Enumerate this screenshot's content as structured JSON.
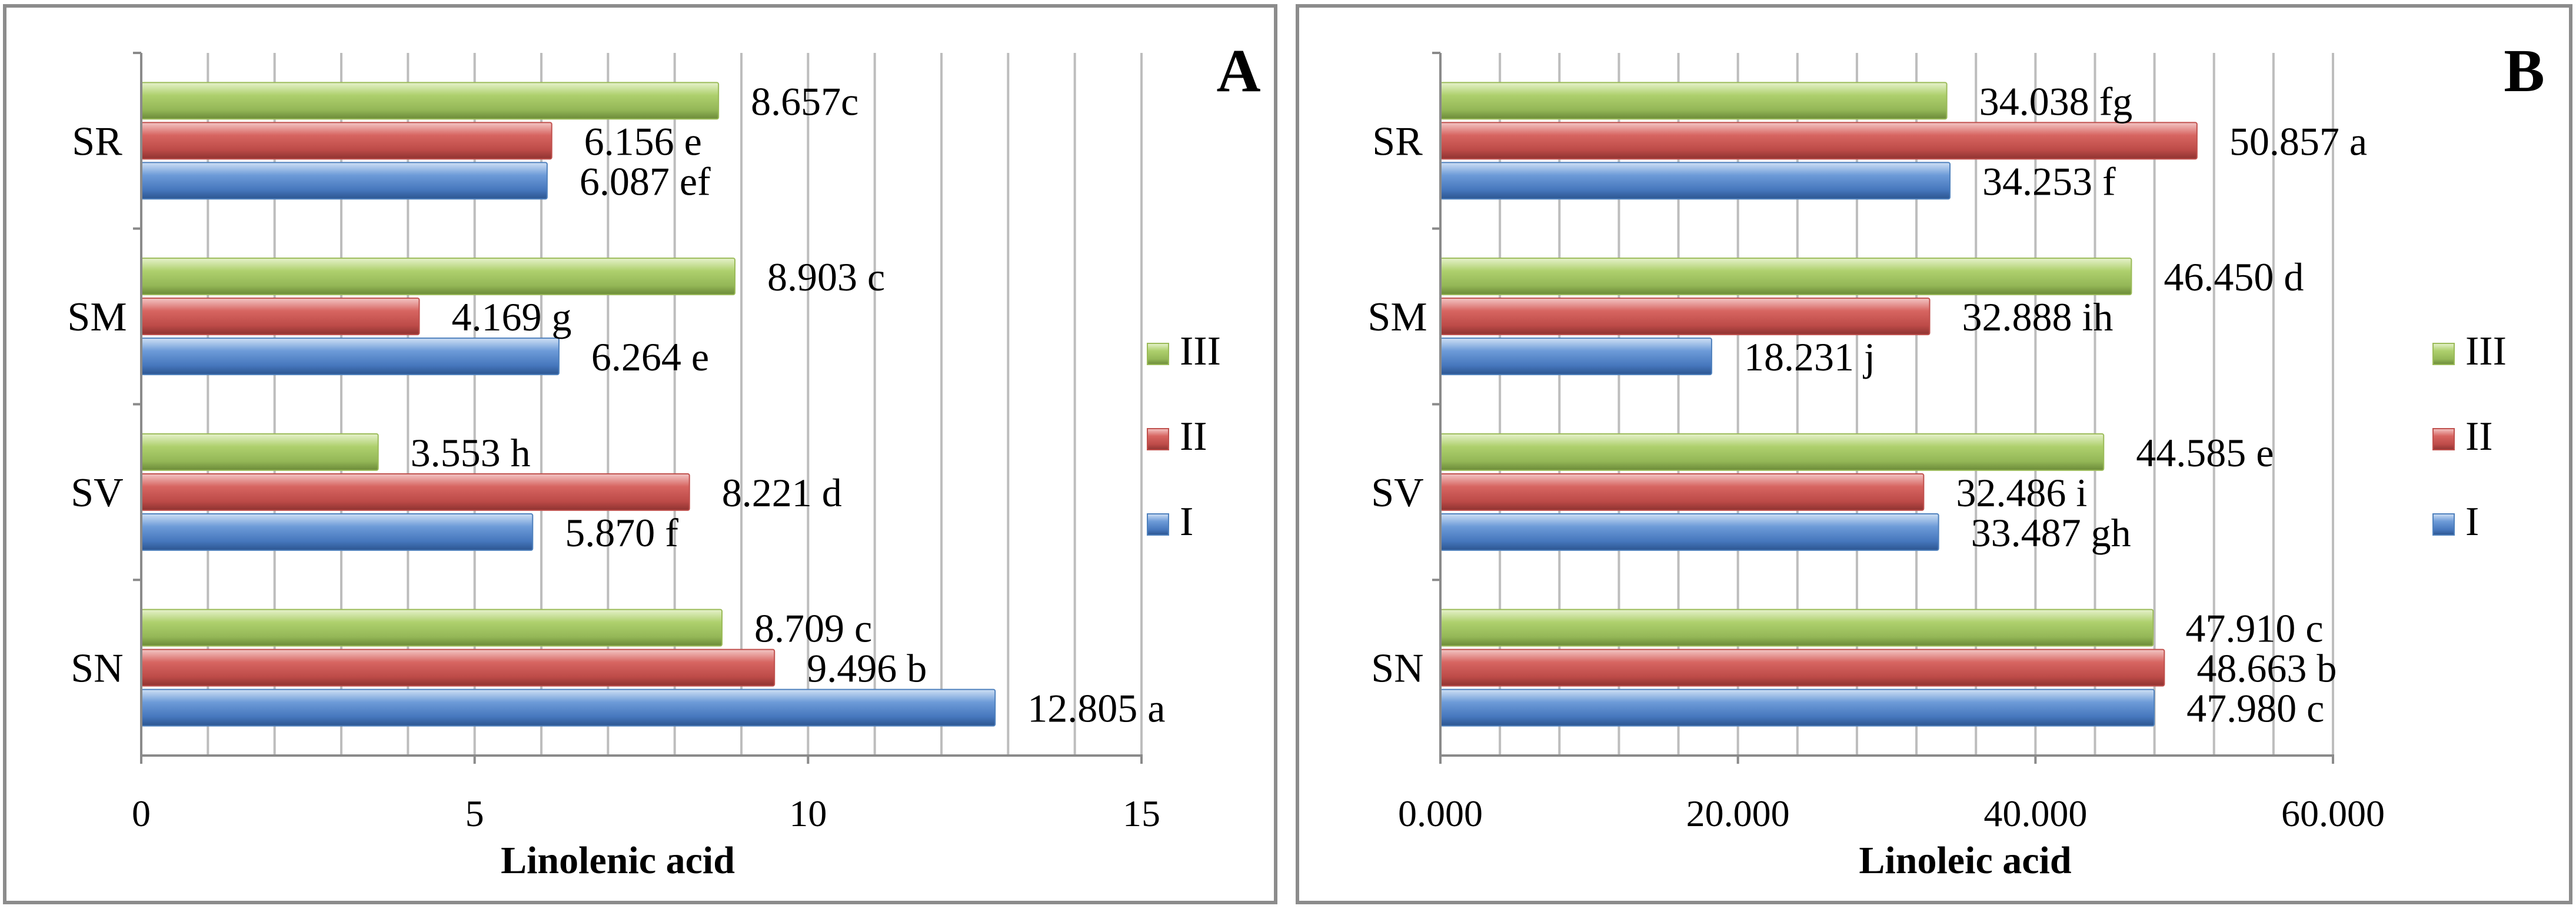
{
  "colors": {
    "I": "#4f81bd",
    "II": "#c0504d",
    "III": "#9bbb59"
  },
  "chart_data": [
    {
      "type": "bar",
      "orientation": "horizontal",
      "panel_label": "A",
      "xlabel": "Linolenic acid",
      "ylabel": "",
      "categories": [
        "SN",
        "SV",
        "SM",
        "SR"
      ],
      "xlim": [
        0,
        15
      ],
      "ticks": [
        0,
        5,
        10,
        15
      ],
      "tick_labels": [
        "0",
        "5",
        "10",
        "15"
      ],
      "minor_grid_step": 1,
      "legend_position": "right",
      "series": [
        {
          "name": "I",
          "values": [
            12.805,
            5.87,
            6.264,
            6.087
          ],
          "labels": [
            "12.805 a",
            "5.870 f",
            "6.264 e",
            "6.087 ef"
          ]
        },
        {
          "name": "II",
          "values": [
            9.496,
            8.221,
            4.169,
            6.156
          ],
          "labels": [
            "9.496 b",
            "8.221 d",
            "4.169 g",
            "6.156 e"
          ]
        },
        {
          "name": "III",
          "values": [
            8.709,
            3.553,
            8.903,
            8.657
          ],
          "labels": [
            "8.709 c",
            "3.553 h",
            "8.903 c",
            "8.657c"
          ]
        }
      ]
    },
    {
      "type": "bar",
      "orientation": "horizontal",
      "panel_label": "B",
      "xlabel": "Linoleic acid",
      "ylabel": "",
      "categories": [
        "SN",
        "SV",
        "SM",
        "SR"
      ],
      "xlim": [
        0,
        60
      ],
      "ticks": [
        0,
        20,
        40,
        60
      ],
      "tick_labels": [
        "0.000",
        "20.000",
        "40.000",
        "60.000"
      ],
      "minor_grid_step": 4,
      "legend_position": "right",
      "series": [
        {
          "name": "I",
          "values": [
            47.98,
            33.487,
            18.231,
            34.253
          ],
          "labels": [
            "47.980 c",
            "33.487 gh",
            "18.231 j",
            "34.253 f"
          ]
        },
        {
          "name": "II",
          "values": [
            48.663,
            32.486,
            32.888,
            50.857
          ],
          "labels": [
            "48.663 b",
            "32.486 i",
            "32.888 ih",
            "50.857 a"
          ]
        },
        {
          "name": "III",
          "values": [
            47.91,
            44.585,
            46.45,
            34.038
          ],
          "labels": [
            "47.910 c",
            "44.585 e",
            "46.450 d",
            "34.038 fg"
          ]
        }
      ]
    }
  ]
}
